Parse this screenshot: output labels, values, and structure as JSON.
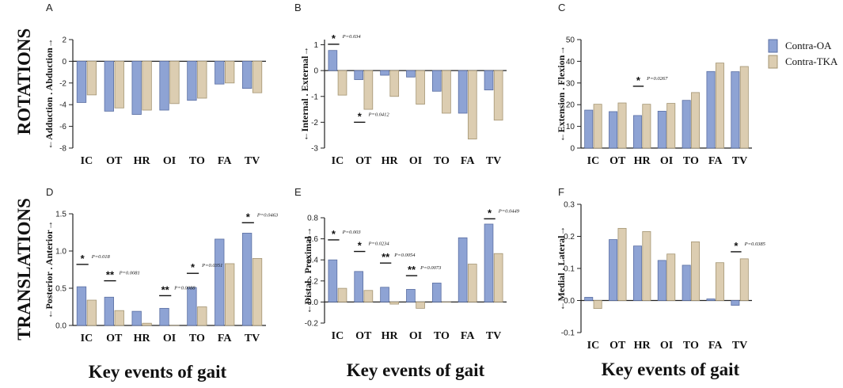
{
  "row_labels": [
    "ROTATIONS",
    "TRANSLATIONS"
  ],
  "x_title": "Key events of gait",
  "legend": [
    {
      "name": "Contra-OA",
      "color": "#8ea3d4"
    },
    {
      "name": "Contra-TKA",
      "color": "#dccdb1"
    }
  ],
  "chart_data": [
    {
      "panel": "A",
      "type": "bar",
      "categories": [
        "IC",
        "OT",
        "HR",
        "OI",
        "TO",
        "FA",
        "TV"
      ],
      "ylabel": "←Adduction . Abduction→",
      "ylim": [
        -8,
        2
      ],
      "yticks": [
        -8,
        -6,
        -4,
        -2,
        0,
        2
      ],
      "series": [
        {
          "name": "Contra-OA",
          "values": [
            -3.8,
            -4.6,
            -4.9,
            -4.5,
            -3.6,
            -2.1,
            -2.5
          ]
        },
        {
          "name": "Contra-TKA",
          "values": [
            -3.1,
            -4.3,
            -4.5,
            -3.9,
            -3.4,
            -2.0,
            -2.9
          ]
        }
      ],
      "annotations": []
    },
    {
      "panel": "B",
      "type": "bar",
      "categories": [
        "IC",
        "OT",
        "HR",
        "OI",
        "TO",
        "FA",
        "TV"
      ],
      "ylabel": "←Internal . External→",
      "ylim": [
        -3,
        1.2
      ],
      "yticks": [
        -3,
        -2,
        -1,
        0,
        1
      ],
      "series": [
        {
          "name": "Contra-OA",
          "values": [
            0.78,
            -0.35,
            -0.18,
            -0.25,
            -0.8,
            -1.65,
            -0.75
          ]
        },
        {
          "name": "Contra-TKA",
          "values": [
            -0.95,
            -1.5,
            -1.0,
            -1.3,
            -1.65,
            -2.65,
            -1.92
          ]
        }
      ],
      "annotations": [
        {
          "category": 0,
          "y": 1.02,
          "stars": "*",
          "p": "P=0.034"
        },
        {
          "category": 1,
          "y": -2.0,
          "stars": "*",
          "p": "P=0.0412"
        }
      ]
    },
    {
      "panel": "C",
      "type": "bar",
      "categories": [
        "IC",
        "OT",
        "HR",
        "OI",
        "TO",
        "FA",
        "TV"
      ],
      "ylabel": "←Extension . Flexion→",
      "ylim": [
        0,
        50
      ],
      "yticks": [
        0,
        10,
        20,
        30,
        40,
        50
      ],
      "series": [
        {
          "name": "Contra-OA",
          "values": [
            17.5,
            16.8,
            15.0,
            17.0,
            22.0,
            35.3,
            35.2
          ]
        },
        {
          "name": "Contra-TKA",
          "values": [
            20.2,
            20.8,
            20.2,
            20.6,
            25.6,
            39.2,
            37.6
          ]
        }
      ],
      "annotations": [
        {
          "category": 2,
          "y": 28.5,
          "stars": "*",
          "p": "P=0.0267"
        }
      ]
    },
    {
      "panel": "D",
      "type": "bar",
      "categories": [
        "IC",
        "OT",
        "HR",
        "OI",
        "TO",
        "FA",
        "TV"
      ],
      "ylabel": "←Posterior . Anterior→",
      "ylim": [
        0,
        1.5
      ],
      "yticks": [
        0.0,
        0.5,
        1.0,
        1.5
      ],
      "series": [
        {
          "name": "Contra-OA",
          "values": [
            0.52,
            0.38,
            0.19,
            0.23,
            0.51,
            1.16,
            1.24
          ]
        },
        {
          "name": "Contra-TKA",
          "values": [
            0.34,
            0.2,
            0.03,
            0.0,
            0.25,
            0.83,
            0.9
          ]
        }
      ],
      "annotations": [
        {
          "category": 0,
          "y": 0.82,
          "stars": "*",
          "p": "P=0.018"
        },
        {
          "category": 1,
          "y": 0.6,
          "stars": "**",
          "p": "P=0.0081"
        },
        {
          "category": 3,
          "y": 0.4,
          "stars": "**",
          "p": "P=0.0088"
        },
        {
          "category": 4,
          "y": 0.7,
          "stars": "*",
          "p": "P=0.0351"
        },
        {
          "category": 6,
          "y": 1.38,
          "stars": "*",
          "p": "P=0.0463"
        }
      ]
    },
    {
      "panel": "E",
      "type": "bar",
      "categories": [
        "IC",
        "OT",
        "HR",
        "OI",
        "TO",
        "FA",
        "TV"
      ],
      "ylabel": "←Distal . Proximal→",
      "ylim": [
        -0.2,
        0.8
      ],
      "yticks": [
        -0.2,
        0.0,
        0.2,
        0.4,
        0.6,
        0.8
      ],
      "series": [
        {
          "name": "Contra-OA",
          "values": [
            0.4,
            0.29,
            0.14,
            0.12,
            0.18,
            0.61,
            0.74
          ]
        },
        {
          "name": "Contra-TKA",
          "values": [
            0.13,
            0.11,
            -0.02,
            -0.06,
            0.0,
            0.36,
            0.46
          ]
        }
      ],
      "annotations": [
        {
          "category": 0,
          "y": 0.59,
          "stars": "*",
          "p": "P=0.003"
        },
        {
          "category": 1,
          "y": 0.48,
          "stars": "*",
          "p": "P=0.0234"
        },
        {
          "category": 2,
          "y": 0.37,
          "stars": "**",
          "p": "P=0.0054"
        },
        {
          "category": 3,
          "y": 0.25,
          "stars": "**",
          "p": "P=0.0073"
        },
        {
          "category": 6,
          "y": 0.79,
          "stars": "*",
          "p": "P=0.0449"
        }
      ]
    },
    {
      "panel": "F",
      "type": "bar",
      "categories": [
        "IC",
        "OT",
        "HR",
        "OI",
        "TO",
        "FA",
        "TV"
      ],
      "ylabel": "←Medial . Lateral→",
      "ylim": [
        -0.1,
        0.3
      ],
      "yticks": [
        -0.1,
        0.0,
        0.1,
        0.2,
        0.3
      ],
      "series": [
        {
          "name": "Contra-OA",
          "values": [
            0.01,
            0.19,
            0.17,
            0.125,
            0.11,
            0.005,
            -0.015
          ]
        },
        {
          "name": "Contra-TKA",
          "values": [
            -0.025,
            0.225,
            0.215,
            0.145,
            0.183,
            0.118,
            0.13
          ]
        }
      ],
      "annotations": [
        {
          "category": 6,
          "y": 0.152,
          "stars": "*",
          "p": "P=0.0385"
        }
      ]
    }
  ]
}
